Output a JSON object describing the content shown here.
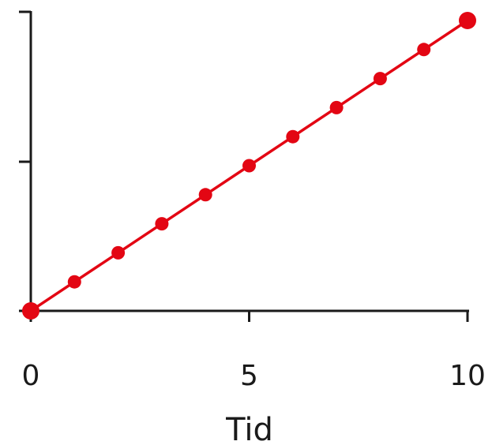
{
  "chart_data": {
    "type": "line",
    "xlabel": "Tid",
    "ylabel": "",
    "xlim": [
      0,
      10
    ],
    "ylim": [
      0,
      1
    ],
    "x_ticks": [
      0,
      5,
      10
    ],
    "x_tick_labels": [
      "0",
      "5",
      "10"
    ],
    "y_ticks": [
      0,
      0.5,
      1
    ],
    "grid": false,
    "series": [
      {
        "color": "#e30613",
        "x": [
          0,
          1,
          2,
          3,
          4,
          5,
          6,
          7,
          8,
          9,
          10
        ],
        "y": [
          0,
          0.1,
          0.2,
          0.3,
          0.4,
          0.5,
          0.6,
          0.7,
          0.8,
          0.9,
          1.0
        ]
      }
    ]
  }
}
